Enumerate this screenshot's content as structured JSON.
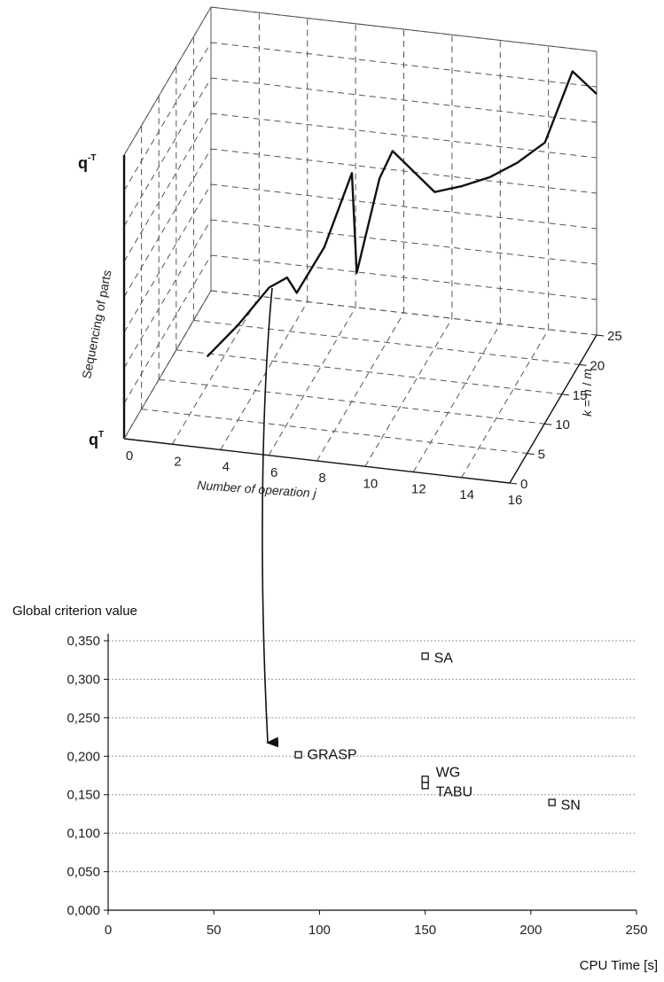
{
  "chart_data": [
    {
      "type": "line",
      "projection": "3d",
      "xlabel": "Number of operation j",
      "ylabel": "Sequencing of parts",
      "zlabel": "k = n / m",
      "z_label_parts": [
        "k",
        "=",
        "n",
        "/",
        "m"
      ],
      "x_ticks": [
        "0",
        "2",
        "4",
        "6",
        "8",
        "10",
        "12",
        "14",
        "16"
      ],
      "z_ticks": [
        "0",
        "5",
        "10",
        "15",
        "20",
        "25"
      ],
      "y_tick_top": "q",
      "y_tick_top_sup": "-T",
      "y_tick_bottom": "q",
      "y_tick_bottom_sup": "T",
      "xlim": [
        0,
        16
      ],
      "ylim": [
        0,
        1
      ],
      "zlim": [
        0,
        25
      ],
      "grid": true,
      "series": [
        {
          "x": [
            2,
            3,
            4,
            4.6,
            5,
            6,
            7,
            7.2,
            8,
            8.4,
            10,
            11,
            12,
            13,
            14,
            15,
            16
          ],
          "y": [
            0.1,
            0.18,
            0.28,
            0.3,
            0.25,
            0.4,
            0.65,
            0.3,
            0.62,
            0.7,
            0.55,
            0.56,
            0.58,
            0.62,
            0.68,
            0.92,
            0.85
          ],
          "z": [
            10,
            12,
            14,
            15,
            15,
            16,
            17,
            17,
            18,
            19,
            20,
            21,
            22,
            23,
            24,
            25,
            25
          ]
        }
      ]
    },
    {
      "type": "scatter",
      "title": "Global criterion value",
      "xlabel": "CPU Time [s]",
      "ylabel": "",
      "xlim": [
        0,
        250
      ],
      "ylim": [
        0,
        0.35
      ],
      "x_ticks": [
        "0",
        "50",
        "100",
        "150",
        "200",
        "250"
      ],
      "y_ticks": [
        "0,000",
        "0,050",
        "0,100",
        "0,150",
        "0,200",
        "0,250",
        "0,300",
        "0,350"
      ],
      "grid": true,
      "points": [
        {
          "label": "SA",
          "x": 150,
          "y": 0.33
        },
        {
          "label": "GRASP",
          "x": 90,
          "y": 0.202
        },
        {
          "label": "WG",
          "x": 150,
          "y": 0.17
        },
        {
          "label": "TABU",
          "x": 150,
          "y": 0.162
        },
        {
          "label": "SN",
          "x": 210,
          "y": 0.14
        }
      ],
      "annotation": "arrow from 3D chart to GRASP region"
    }
  ]
}
